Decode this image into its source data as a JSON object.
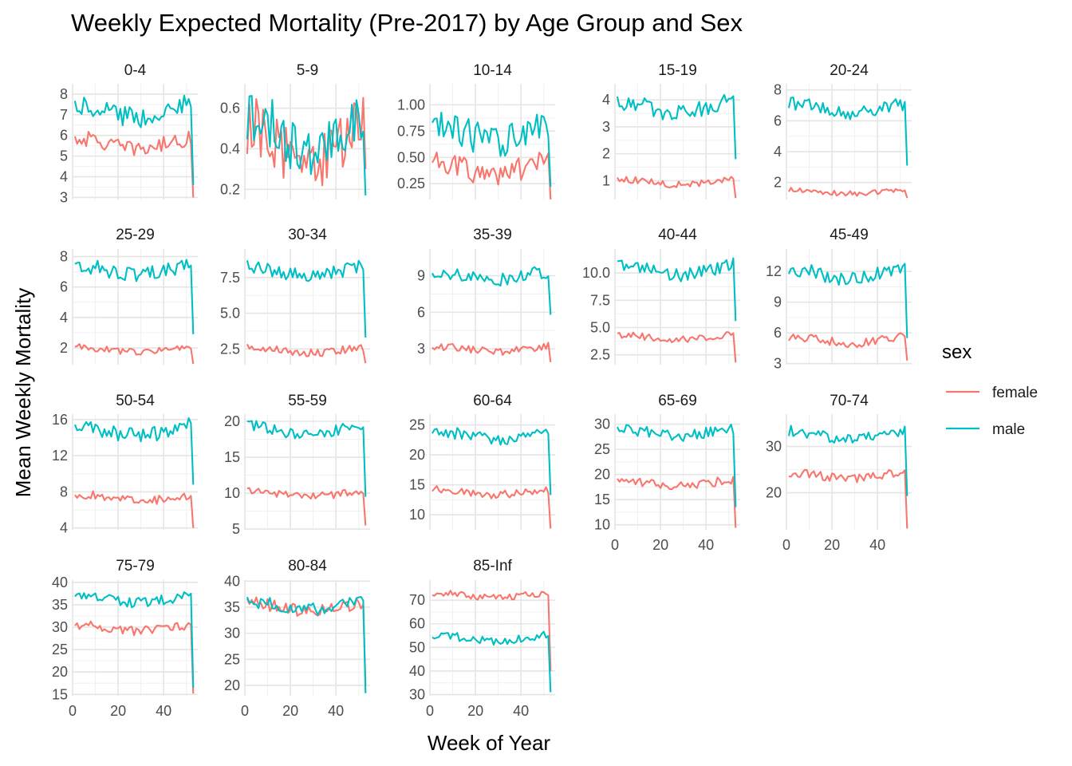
{
  "chart_data": {
    "type": "line",
    "title": "Weekly Expected Mortality (Pre-2017) by Age Group and Sex",
    "xlabel": "Week of Year",
    "ylabel": "Mean Weekly Mortality",
    "legend": {
      "title": "sex",
      "position": "right"
    },
    "grid": true,
    "xlim": [
      0,
      55
    ],
    "x_ticks": [
      0,
      20,
      40
    ],
    "series_names": [
      "female",
      "male"
    ],
    "colors": {
      "female": "#F8766D",
      "male": "#00BFC4"
    },
    "panels": [
      {
        "name": "0-4",
        "ylim": [
          2.9,
          8.5
        ],
        "yticks": [
          3,
          4,
          5,
          6,
          7,
          8
        ],
        "female": {
          "base": 5.6,
          "amp": 0.35,
          "end": 3.0
        },
        "male": {
          "base": 7.2,
          "amp": 0.45,
          "end": 3.6
        }
      },
      {
        "name": "5-9",
        "ylim": [
          0.15,
          0.72
        ],
        "yticks": [
          0.2,
          0.4,
          0.6
        ],
        "female": {
          "base": 0.42,
          "amp": 0.13,
          "end": 0.3
        },
        "male": {
          "base": 0.48,
          "amp": 0.12,
          "end": 0.17
        }
      },
      {
        "name": "10-14",
        "ylim": [
          0.1,
          1.2
        ],
        "yticks": [
          0.25,
          0.5,
          0.75,
          1.0
        ],
        "female": {
          "base": 0.4,
          "amp": 0.1,
          "end": 0.1
        },
        "male": {
          "base": 0.75,
          "amp": 0.14,
          "end": 0.22
        }
      },
      {
        "name": "15-19",
        "ylim": [
          0.3,
          4.6
        ],
        "yticks": [
          1,
          2,
          3,
          4
        ],
        "female": {
          "base": 0.95,
          "amp": 0.12,
          "end": 0.35
        },
        "male": {
          "base": 3.7,
          "amp": 0.3,
          "end": 1.8
        }
      },
      {
        "name": "20-24",
        "ylim": [
          0.9,
          8.4
        ],
        "yticks": [
          2,
          4,
          6,
          8
        ],
        "female": {
          "base": 1.4,
          "amp": 0.15,
          "end": 1.0
        },
        "male": {
          "base": 6.8,
          "amp": 0.4,
          "end": 3.1
        }
      },
      {
        "name": "25-29",
        "ylim": [
          0.9,
          8.5
        ],
        "yticks": [
          2,
          4,
          6,
          8
        ],
        "female": {
          "base": 1.9,
          "amp": 0.2,
          "end": 0.95
        },
        "male": {
          "base": 7.1,
          "amp": 0.45,
          "end": 2.9
        }
      },
      {
        "name": "30-34",
        "ylim": [
          1.4,
          9.5
        ],
        "yticks": [
          2.5,
          5.0,
          7.5
        ],
        "female": {
          "base": 2.4,
          "amp": 0.25,
          "end": 1.5
        },
        "male": {
          "base": 7.9,
          "amp": 0.45,
          "end": 3.3
        }
      },
      {
        "name": "35-39",
        "ylim": [
          1.7,
          11.2
        ],
        "yticks": [
          3,
          6,
          9
        ],
        "female": {
          "base": 3.0,
          "amp": 0.3,
          "end": 1.9
        },
        "male": {
          "base": 9.0,
          "amp": 0.5,
          "end": 5.8
        }
      },
      {
        "name": "40-44",
        "ylim": [
          1.6,
          12.2
        ],
        "yticks": [
          2.5,
          5.0,
          7.5,
          10.0
        ],
        "female": {
          "base": 4.1,
          "amp": 0.3,
          "end": 1.8
        },
        "male": {
          "base": 10.3,
          "amp": 0.6,
          "end": 5.6
        }
      },
      {
        "name": "45-49",
        "ylim": [
          2.9,
          14.2
        ],
        "yticks": [
          3,
          6,
          9,
          12
        ],
        "female": {
          "base": 5.3,
          "amp": 0.4,
          "end": 3.3
        },
        "male": {
          "base": 11.8,
          "amp": 0.7,
          "end": 5.5
        }
      },
      {
        "name": "50-54",
        "ylim": [
          3.8,
          16.6
        ],
        "yticks": [
          4,
          8,
          12,
          16
        ],
        "female": {
          "base": 7.3,
          "amp": 0.5,
          "end": 4.0
        },
        "male": {
          "base": 14.8,
          "amp": 0.8,
          "end": 8.8
        }
      },
      {
        "name": "55-59",
        "ylim": [
          4.9,
          21.0
        ],
        "yticks": [
          5,
          10,
          15,
          20
        ],
        "female": {
          "base": 9.9,
          "amp": 0.5,
          "end": 5.5
        },
        "male": {
          "base": 18.7,
          "amp": 0.8,
          "end": 9.5
        }
      },
      {
        "name": "60-64",
        "ylim": [
          7.5,
          26.8
        ],
        "yticks": [
          10,
          15,
          20,
          25
        ],
        "female": {
          "base": 13.8,
          "amp": 0.6,
          "end": 7.7
        },
        "male": {
          "base": 23.3,
          "amp": 1.0,
          "end": 13.3
        }
      },
      {
        "name": "65-69",
        "ylim": [
          9.0,
          32.0
        ],
        "yticks": [
          10,
          15,
          20,
          25,
          30
        ],
        "female": {
          "base": 18.3,
          "amp": 0.8,
          "end": 9.4
        },
        "male": {
          "base": 28.3,
          "amp": 1.0,
          "end": 13.5
        }
      },
      {
        "name": "70-74",
        "ylim": [
          12.0,
          37.0
        ],
        "yticks": [
          20,
          30
        ],
        "female": {
          "base": 23.8,
          "amp": 0.9,
          "end": 12.3
        },
        "male": {
          "base": 32.5,
          "amp": 1.1,
          "end": 19.3
        }
      },
      {
        "name": "75-79",
        "ylim": [
          14.7,
          40.5
        ],
        "yticks": [
          15,
          20,
          25,
          30,
          35,
          40
        ],
        "female": {
          "base": 29.8,
          "amp": 0.9,
          "end": 15.2
        },
        "male": {
          "base": 36.2,
          "amp": 1.0,
          "end": 16.5
        }
      },
      {
        "name": "80-84",
        "ylim": [
          18.0,
          40.2
        ],
        "yticks": [
          20,
          25,
          30,
          35,
          40
        ],
        "female": {
          "base": 35.0,
          "amp": 1.1,
          "end": 20.0
        },
        "male": {
          "base": 35.3,
          "amp": 1.1,
          "end": 18.5
        }
      },
      {
        "name": "85-Inf",
        "ylim": [
          29.5,
          78.5
        ],
        "yticks": [
          30,
          40,
          50,
          60,
          70
        ],
        "female": {
          "base": 72.0,
          "amp": 1.3,
          "end": 40.0
        },
        "male": {
          "base": 54.0,
          "amp": 1.6,
          "end": 31.0
        }
      }
    ]
  }
}
